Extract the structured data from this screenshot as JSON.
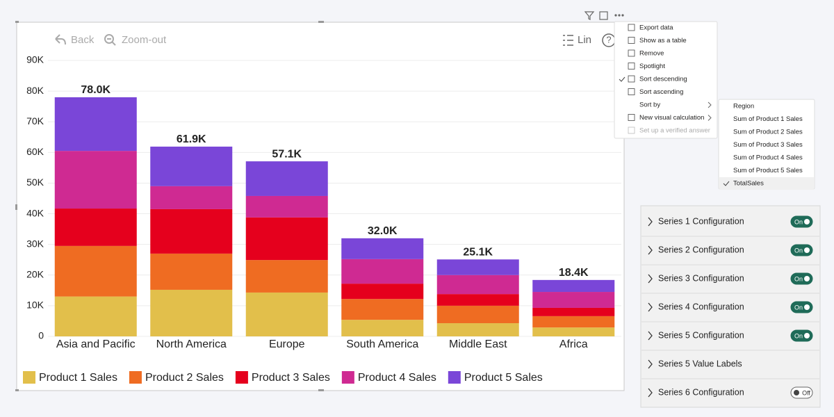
{
  "toolbar": {
    "back": "Back",
    "zoom_out": "Zoom-out",
    "scale": "Lin",
    "help": "?"
  },
  "chart_data": {
    "type": "bar",
    "stacked": true,
    "categories": [
      "Asia and Pacific",
      "North America",
      "Europe",
      "South America",
      "Middle East",
      "Africa"
    ],
    "series": [
      {
        "name": "Product 1 Sales",
        "color": "#e2bf4b",
        "values": [
          13000,
          15200,
          14300,
          5400,
          4300,
          2900
        ]
      },
      {
        "name": "Product 2 Sales",
        "color": "#ef6c22",
        "values": [
          16500,
          11800,
          10600,
          6800,
          5700,
          3700
        ]
      },
      {
        "name": "Product 3 Sales",
        "color": "#e5001d",
        "values": [
          12200,
          14500,
          13900,
          5000,
          3800,
          2700
        ]
      },
      {
        "name": "Product 4 Sales",
        "color": "#cf2a92",
        "values": [
          18800,
          7500,
          7000,
          8000,
          6200,
          5200
        ]
      },
      {
        "name": "Product 5 Sales",
        "color": "#7a46d8",
        "values": [
          17500,
          12900,
          11300,
          6800,
          5100,
          3900
        ]
      }
    ],
    "totals": [
      78000,
      61900,
      57100,
      32000,
      25100,
      18400
    ],
    "total_labels": [
      "78.0K",
      "61.9K",
      "57.1K",
      "32.0K",
      "25.1K",
      "18.4K"
    ],
    "ylim": [
      0,
      90000
    ],
    "yticks": [
      0,
      {
        "value": 10000,
        "label": "10K"
      },
      {
        "value": 20000,
        "label": "20K"
      },
      {
        "value": 30000,
        "label": "30K"
      },
      {
        "value": 40000,
        "label": "40K"
      },
      {
        "value": 50000,
        "label": "50K"
      },
      {
        "value": 60000,
        "label": "60K"
      },
      {
        "value": 70000,
        "label": "70K"
      },
      {
        "value": 80000,
        "label": "80K"
      },
      {
        "value": 90000,
        "label": "90K"
      }
    ],
    "grid": true,
    "legend": "bottom-left"
  },
  "context_menu": {
    "items": [
      {
        "label": "Export data"
      },
      {
        "label": "Show as a table"
      },
      {
        "label": "Remove"
      },
      {
        "label": "Spotlight"
      },
      {
        "label": "Sort descending",
        "checked": true
      },
      {
        "label": "Sort ascending"
      },
      {
        "label": "Sort by",
        "has_submenu": true
      },
      {
        "label": "New visual calculation",
        "has_submenu": true
      },
      {
        "label": "Set up a verified answer",
        "disabled": true
      }
    ]
  },
  "submenu": {
    "items": [
      {
        "label": "Region"
      },
      {
        "label": "Sum of Product 1 Sales"
      },
      {
        "label": "Sum of Product 2 Sales"
      },
      {
        "label": "Sum of Product 3 Sales"
      },
      {
        "label": "Sum of Product 4 Sales"
      },
      {
        "label": "Sum of Product 5 Sales"
      },
      {
        "label": "TotalSales",
        "checked": true
      }
    ]
  },
  "settings_panel": {
    "rows": [
      {
        "label": "Series 1 Configuration",
        "toggle": "On"
      },
      {
        "label": "Series 2 Configuration",
        "toggle": "On"
      },
      {
        "label": "Series 3 Configuration",
        "toggle": "On"
      },
      {
        "label": "Series 4 Configuration",
        "toggle": "On"
      },
      {
        "label": "Series 5 Configuration",
        "toggle": "On"
      },
      {
        "label": "Series 5 Value Labels"
      },
      {
        "label": "Series 6 Configuration",
        "toggle": "Off"
      }
    ]
  }
}
